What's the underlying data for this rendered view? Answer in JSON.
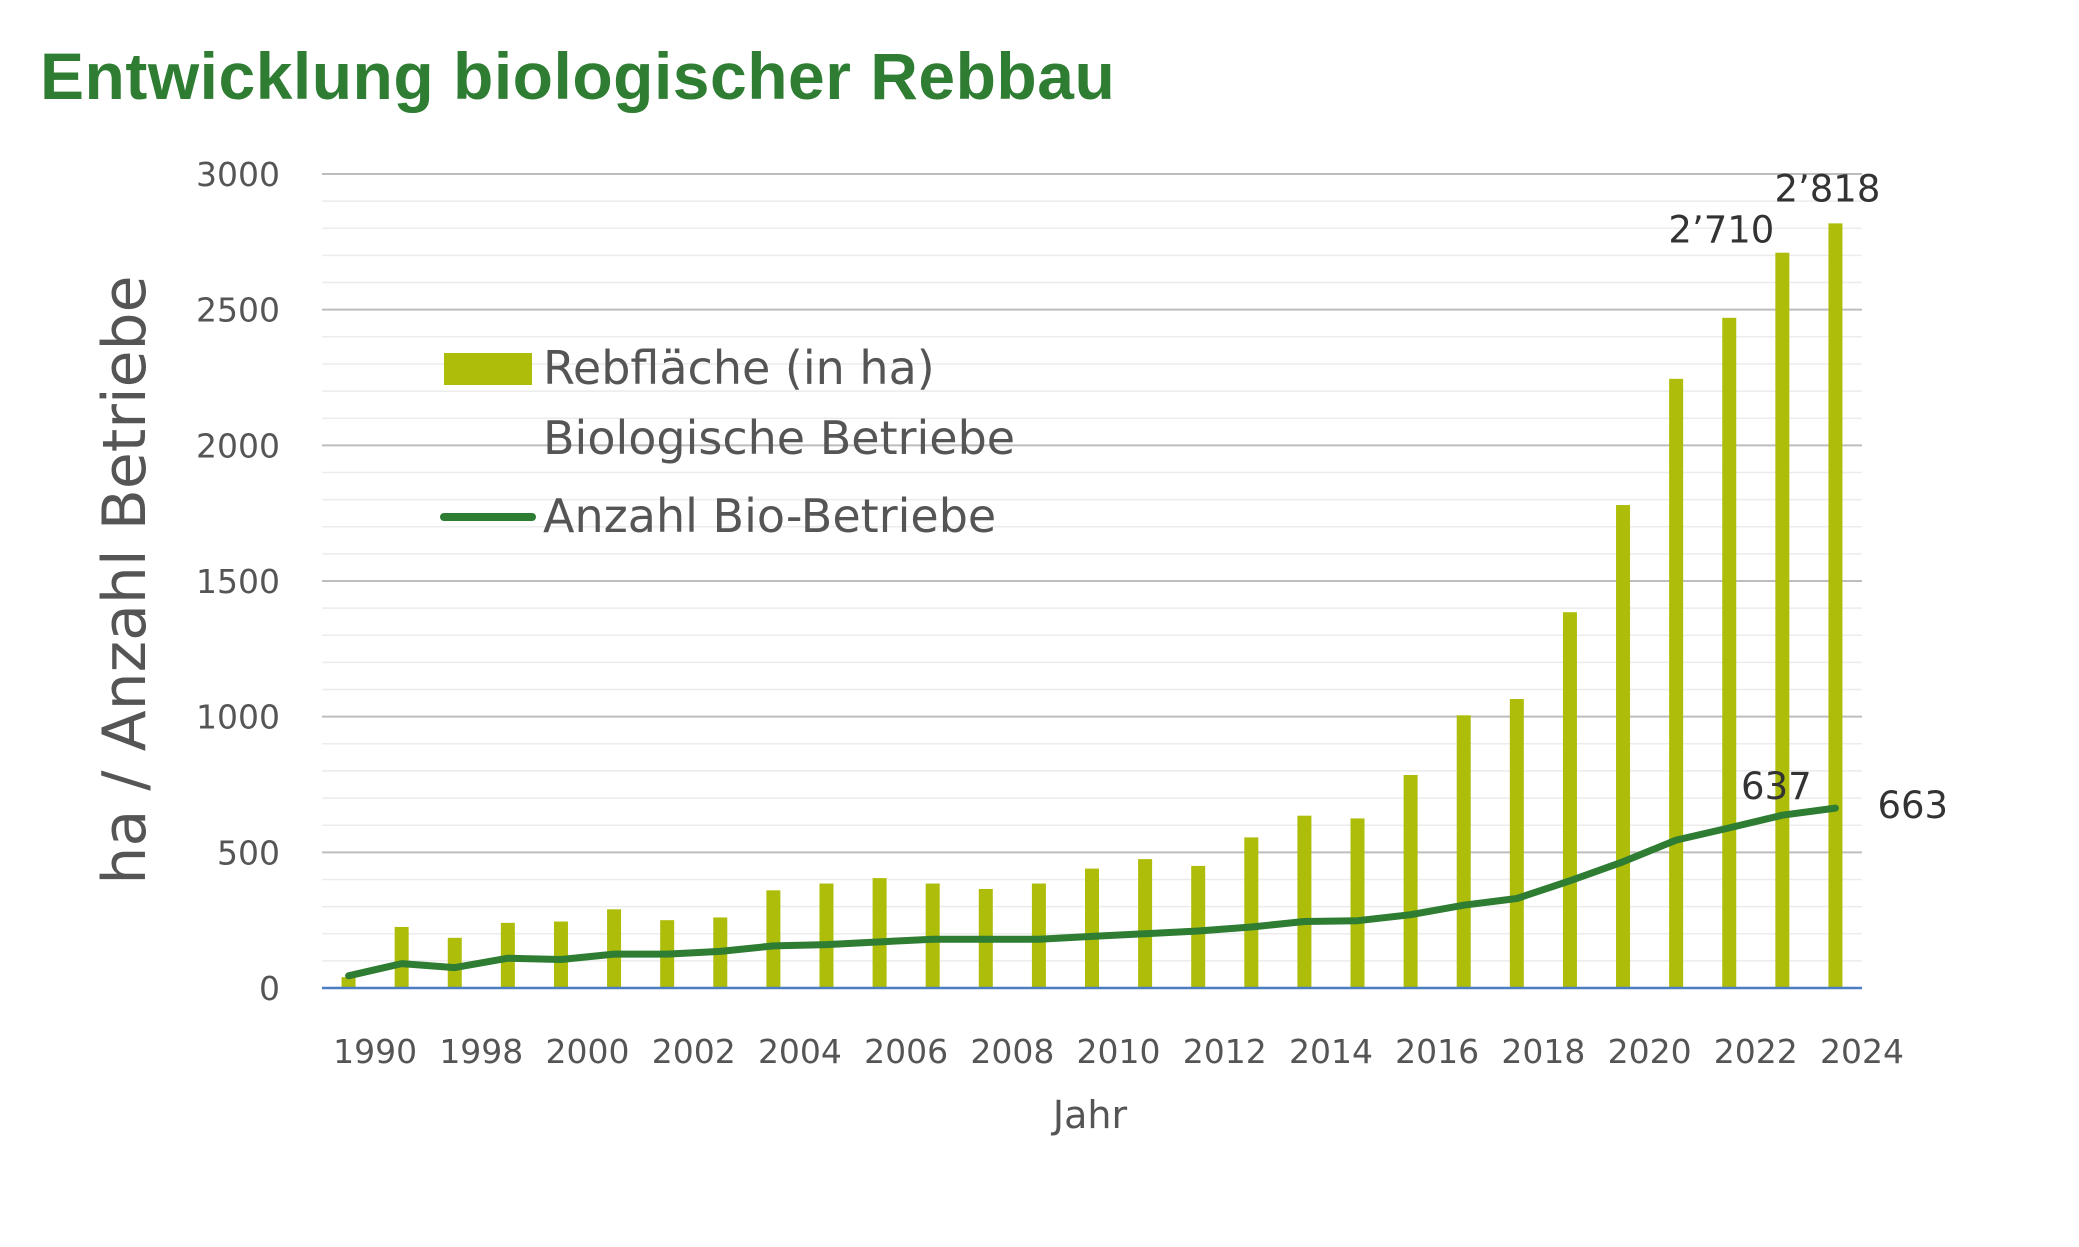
{
  "chart_data": {
    "type": "bar",
    "title": "Entwicklung biologischer Rebbau",
    "xlabel": "Jahr",
    "ylabel": "ha / Anzahl Betriebe",
    "ylim": [
      0,
      3000
    ],
    "yticks": [
      0,
      500,
      1000,
      1500,
      2000,
      2500,
      3000
    ],
    "categories": [
      "1990",
      "",
      "1998",
      "",
      "2000",
      "",
      "2002",
      "",
      "2004",
      "",
      "2006",
      "",
      "2008",
      "",
      "2010",
      "",
      "2012",
      "",
      "2014",
      "",
      "2016",
      "",
      "2018",
      "",
      "2020",
      "",
      "2022",
      "",
      "2024"
    ],
    "series": [
      {
        "name": "Rebfläche (in ha)",
        "type": "bar",
        "color": "#adbd0a",
        "values": [
          40,
          225,
          185,
          240,
          245,
          290,
          250,
          260,
          360,
          385,
          405,
          385,
          365,
          385,
          440,
          475,
          450,
          555,
          635,
          625,
          785,
          1005,
          1065,
          1385,
          1780,
          2245,
          2470,
          2710,
          2818
        ]
      },
      {
        "name": "Anzahl Bio-Betriebe",
        "type": "line",
        "color": "#2e7d32",
        "values": [
          45,
          90,
          75,
          110,
          105,
          125,
          125,
          135,
          155,
          160,
          170,
          180,
          180,
          180,
          190,
          200,
          210,
          225,
          245,
          248,
          270,
          305,
          330,
          395,
          465,
          545,
          590,
          637,
          663
        ]
      }
    ],
    "data_labels": [
      {
        "series": 0,
        "index": 27,
        "text": "2’710"
      },
      {
        "series": 0,
        "index": 28,
        "text": "2’818"
      },
      {
        "series": 1,
        "index": 27,
        "text": "637"
      },
      {
        "series": 1,
        "index": 28,
        "text": "663"
      }
    ],
    "legend": {
      "placement": "top-left",
      "items": [
        "Rebfläche (in ha)",
        "Biologische Betriebe",
        "Anzahl Bio-Betriebe"
      ]
    },
    "grid": true,
    "colors": {
      "title": "#2e7d32",
      "grid_major": "#bdbdbd",
      "grid_minor": "#ececec",
      "axis": "#4a7ec0"
    }
  }
}
